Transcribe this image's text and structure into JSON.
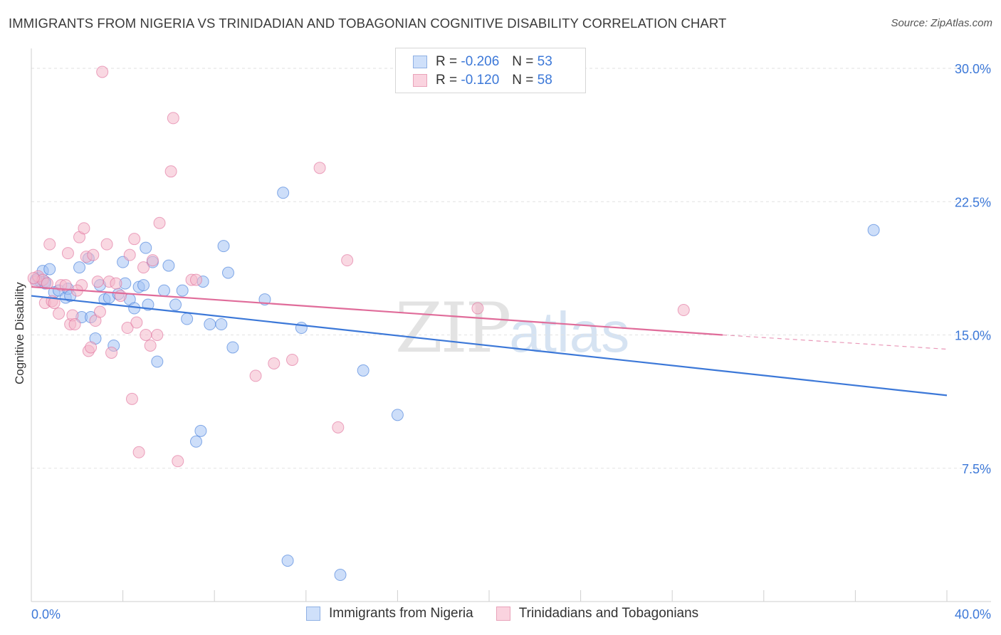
{
  "header": {
    "title": "IMMIGRANTS FROM NIGERIA VS TRINIDADIAN AND TOBAGONIAN COGNITIVE DISABILITY CORRELATION CHART",
    "source": "Source: ZipAtlas.com"
  },
  "watermark": {
    "zip": "ZIP",
    "atlas": "atlas"
  },
  "legend": {
    "r_label": "R =",
    "n_label": "N =",
    "rows": [
      {
        "r": "-0.206",
        "n": "53",
        "color": "#a4c2f4"
      },
      {
        "r": "-0.120",
        "n": "58",
        "color": "#f4b8cb"
      }
    ]
  },
  "bottom_legend": [
    {
      "label": "Immigrants from Nigeria",
      "color": "#a4c2f4"
    },
    {
      "label": "Trinidadians and Tobagonians",
      "color": "#f4b8cb"
    }
  ],
  "chart_data": {
    "type": "scatter",
    "title": "IMMIGRANTS FROM NIGERIA VS TRINIDADIAN AND TOBAGONIAN COGNITIVE DISABILITY CORRELATION CHART",
    "xlabel": "",
    "ylabel": "Cognitive Disability",
    "xlim": [
      0,
      40
    ],
    "ylim": [
      0,
      30
    ],
    "x_tick_labels": [
      "0.0%",
      "40.0%"
    ],
    "y_ticks": [
      7.5,
      15.0,
      22.5,
      30.0
    ],
    "y_tick_labels": [
      "7.5%",
      "15.0%",
      "22.5%",
      "30.0%"
    ],
    "grid": true,
    "series": [
      {
        "name": "Immigrants from Nigeria",
        "color": "#3c78d8",
        "fill": "#a4c2f4",
        "points": [
          [
            0.3,
            18.2
          ],
          [
            0.4,
            18.0
          ],
          [
            0.5,
            18.6
          ],
          [
            0.6,
            18.0
          ],
          [
            0.8,
            18.7
          ],
          [
            1.0,
            17.4
          ],
          [
            1.2,
            17.5
          ],
          [
            1.5,
            17.1
          ],
          [
            1.6,
            17.6
          ],
          [
            1.7,
            17.2
          ],
          [
            2.1,
            18.8
          ],
          [
            2.2,
            16.0
          ],
          [
            2.5,
            19.3
          ],
          [
            2.6,
            16.0
          ],
          [
            2.8,
            14.8
          ],
          [
            3.0,
            17.8
          ],
          [
            3.2,
            17.0
          ],
          [
            3.4,
            17.1
          ],
          [
            3.6,
            14.4
          ],
          [
            3.8,
            17.3
          ],
          [
            4.0,
            19.1
          ],
          [
            4.1,
            17.9
          ],
          [
            4.3,
            17.0
          ],
          [
            4.5,
            16.5
          ],
          [
            4.7,
            17.7
          ],
          [
            4.9,
            17.8
          ],
          [
            5.0,
            19.9
          ],
          [
            5.1,
            16.7
          ],
          [
            5.3,
            19.1
          ],
          [
            5.5,
            13.5
          ],
          [
            5.8,
            17.5
          ],
          [
            6.0,
            18.9
          ],
          [
            6.3,
            16.7
          ],
          [
            6.6,
            17.5
          ],
          [
            6.8,
            15.9
          ],
          [
            7.2,
            9.0
          ],
          [
            7.4,
            9.6
          ],
          [
            7.5,
            18.0
          ],
          [
            7.8,
            15.6
          ],
          [
            8.3,
            15.6
          ],
          [
            8.4,
            20.0
          ],
          [
            8.6,
            18.5
          ],
          [
            8.8,
            14.3
          ],
          [
            10.2,
            17.0
          ],
          [
            11.0,
            23.0
          ],
          [
            11.2,
            2.3
          ],
          [
            11.8,
            15.4
          ],
          [
            13.5,
            1.5
          ],
          [
            14.5,
            13.0
          ],
          [
            16.0,
            10.5
          ],
          [
            36.8,
            20.9
          ],
          [
            0.2,
            18.1
          ],
          [
            0.6,
            17.9
          ]
        ],
        "trend": {
          "x0": 0,
          "y0": 17.2,
          "x1": 40,
          "y1": 11.6
        }
      },
      {
        "name": "Trinidadians and Tobagonians",
        "color": "#e06c9a",
        "fill": "#f4b8cb",
        "points": [
          [
            0.2,
            18.0
          ],
          [
            0.3,
            18.3
          ],
          [
            0.5,
            18.1
          ],
          [
            0.6,
            16.8
          ],
          [
            0.7,
            17.9
          ],
          [
            0.8,
            20.1
          ],
          [
            0.9,
            16.9
          ],
          [
            1.0,
            16.8
          ],
          [
            1.2,
            16.2
          ],
          [
            1.3,
            17.8
          ],
          [
            1.5,
            17.8
          ],
          [
            1.6,
            19.6
          ],
          [
            1.7,
            15.6
          ],
          [
            1.8,
            16.1
          ],
          [
            1.9,
            15.6
          ],
          [
            2.1,
            20.5
          ],
          [
            2.2,
            17.8
          ],
          [
            2.3,
            21.0
          ],
          [
            2.4,
            19.4
          ],
          [
            2.5,
            14.1
          ],
          [
            2.6,
            14.3
          ],
          [
            2.7,
            19.5
          ],
          [
            2.8,
            15.8
          ],
          [
            2.9,
            18.0
          ],
          [
            3.0,
            16.3
          ],
          [
            3.3,
            20.1
          ],
          [
            3.4,
            18.0
          ],
          [
            3.5,
            14.0
          ],
          [
            3.7,
            17.9
          ],
          [
            3.9,
            17.2
          ],
          [
            4.2,
            15.4
          ],
          [
            4.3,
            19.5
          ],
          [
            4.4,
            11.4
          ],
          [
            4.5,
            20.4
          ],
          [
            4.6,
            15.7
          ],
          [
            4.7,
            8.4
          ],
          [
            4.9,
            18.8
          ],
          [
            5.0,
            15.0
          ],
          [
            5.2,
            14.4
          ],
          [
            5.3,
            19.2
          ],
          [
            5.5,
            15.0
          ],
          [
            5.6,
            21.3
          ],
          [
            6.1,
            24.2
          ],
          [
            6.2,
            27.2
          ],
          [
            6.4,
            7.9
          ],
          [
            7.0,
            18.1
          ],
          [
            7.2,
            18.1
          ],
          [
            9.8,
            12.7
          ],
          [
            10.6,
            13.4
          ],
          [
            11.4,
            13.6
          ],
          [
            12.6,
            24.4
          ],
          [
            13.4,
            9.8
          ],
          [
            13.8,
            19.2
          ],
          [
            19.5,
            16.5
          ],
          [
            28.5,
            16.4
          ],
          [
            3.1,
            29.8
          ],
          [
            0.1,
            18.2
          ],
          [
            2.0,
            17.5
          ]
        ],
        "trend": {
          "x0": 0,
          "y0": 17.7,
          "x1": 30.2,
          "y1": 15.0
        },
        "trend_dashed": {
          "x0": 30.2,
          "y0": 15.0,
          "x1": 40,
          "y1": 14.2
        }
      }
    ]
  }
}
